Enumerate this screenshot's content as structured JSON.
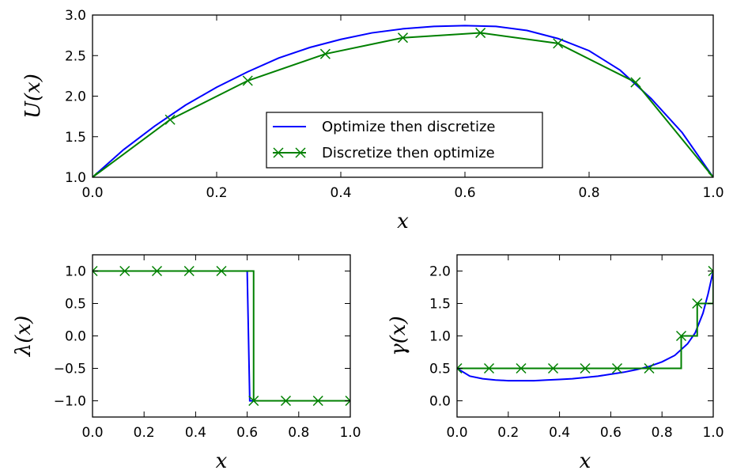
{
  "colors": {
    "optimize_then_discretize": "#0000ff",
    "discretize_then_optimize": "#008000"
  },
  "chart_data": [
    {
      "type": "line",
      "panel": "top",
      "xlabel": "x",
      "ylabel": "U(x)",
      "xlim": [
        0.0,
        1.0
      ],
      "ylim": [
        1.0,
        3.0
      ],
      "xticks": [
        "0.0",
        "0.2",
        "0.4",
        "0.6",
        "0.8",
        "1.0"
      ],
      "yticks": [
        "1.0",
        "1.5",
        "2.0",
        "2.5",
        "3.0"
      ],
      "legend": {
        "position": "lower center",
        "entries": [
          "Optimize then discretize",
          "Discretize then optimize"
        ]
      },
      "series": [
        {
          "name": "Optimize then discretize",
          "marker": "none",
          "x": [
            0.0,
            0.05,
            0.1,
            0.15,
            0.2,
            0.25,
            0.3,
            0.35,
            0.4,
            0.45,
            0.5,
            0.55,
            0.6,
            0.65,
            0.7,
            0.75,
            0.8,
            0.85,
            0.9,
            0.95,
            1.0
          ],
          "y": [
            1.0,
            1.34,
            1.63,
            1.89,
            2.11,
            2.3,
            2.47,
            2.6,
            2.7,
            2.78,
            2.83,
            2.86,
            2.87,
            2.86,
            2.81,
            2.71,
            2.56,
            2.32,
            1.97,
            1.55,
            1.0
          ]
        },
        {
          "name": "Discretize then optimize",
          "marker": "x",
          "x": [
            0.0,
            0.125,
            0.25,
            0.375,
            0.5,
            0.625,
            0.75,
            0.875,
            1.0
          ],
          "y": [
            1.0,
            1.71,
            2.19,
            2.52,
            2.72,
            2.78,
            2.65,
            2.17,
            1.0
          ]
        }
      ]
    },
    {
      "type": "line",
      "panel": "bottom-left",
      "xlabel": "x",
      "ylabel": "λ(x)",
      "xlim": [
        0.0,
        1.0
      ],
      "ylim": [
        -1.25,
        1.25
      ],
      "xticks": [
        "0.0",
        "0.2",
        "0.4",
        "0.6",
        "0.8",
        "1.0"
      ],
      "yticks": [
        "−1.0",
        "−0.5",
        "0.0",
        "0.5",
        "1.0"
      ],
      "series": [
        {
          "name": "Optimize then discretize",
          "marker": "none",
          "x": [
            0.0,
            0.6,
            0.61,
            1.0
          ],
          "y": [
            1.0,
            1.0,
            -1.0,
            -1.0
          ]
        },
        {
          "name": "Discretize then optimize",
          "marker": "x",
          "step": true,
          "x": [
            0.0,
            0.125,
            0.25,
            0.375,
            0.5,
            0.625,
            0.75,
            0.875,
            1.0
          ],
          "y": [
            1.0,
            1.0,
            1.0,
            1.0,
            1.0,
            -1.0,
            -1.0,
            -1.0,
            -1.0
          ]
        }
      ]
    },
    {
      "type": "line",
      "panel": "bottom-right",
      "xlabel": "x",
      "ylabel": "γ(x)",
      "xlim": [
        0.0,
        1.0
      ],
      "ylim": [
        -0.25,
        2.25
      ],
      "xticks": [
        "0.0",
        "0.2",
        "0.4",
        "0.6",
        "0.8",
        "1.0"
      ],
      "yticks": [
        "0.0",
        "0.5",
        "1.0",
        "1.5",
        "2.0"
      ],
      "series": [
        {
          "name": "Optimize then discretize",
          "marker": "none",
          "x": [
            0.0,
            0.05,
            0.1,
            0.15,
            0.2,
            0.25,
            0.3,
            0.35,
            0.4,
            0.45,
            0.5,
            0.55,
            0.6,
            0.65,
            0.7,
            0.75,
            0.8,
            0.85,
            0.9,
            0.93,
            0.96,
            0.98,
            1.0
          ],
          "y": [
            0.5,
            0.38,
            0.34,
            0.32,
            0.31,
            0.31,
            0.31,
            0.32,
            0.33,
            0.34,
            0.36,
            0.38,
            0.41,
            0.44,
            0.48,
            0.53,
            0.6,
            0.7,
            0.88,
            1.05,
            1.35,
            1.65,
            2.0
          ]
        },
        {
          "name": "Discretize then optimize",
          "marker": "x",
          "step": true,
          "x": [
            0.0,
            0.125,
            0.25,
            0.375,
            0.5,
            0.625,
            0.75,
            0.875,
            0.9375,
            1.0
          ],
          "y": [
            0.5,
            0.5,
            0.5,
            0.5,
            0.5,
            0.5,
            0.5,
            1.0,
            1.5,
            2.0
          ]
        }
      ]
    }
  ]
}
